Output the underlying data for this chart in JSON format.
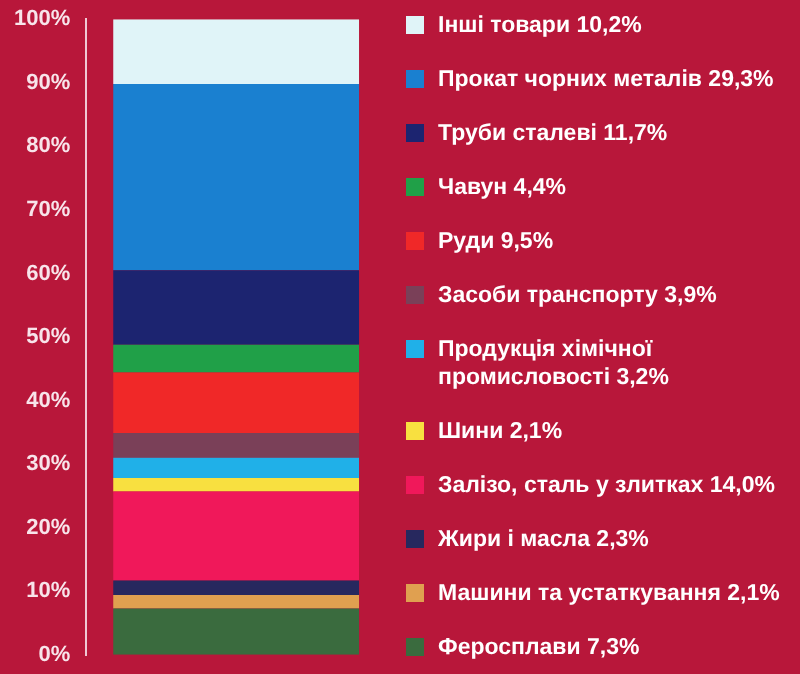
{
  "chart_data": {
    "type": "bar",
    "stacked": true,
    "categories": [
      null
    ],
    "ylim": [
      0,
      100
    ],
    "yticks": [
      {
        "value": 0,
        "label": "0%"
      },
      {
        "value": 10,
        "label": "10%"
      },
      {
        "value": 20,
        "label": "20%"
      },
      {
        "value": 30,
        "label": "30%"
      },
      {
        "value": 40,
        "label": "40%"
      },
      {
        "value": 50,
        "label": "50%"
      },
      {
        "value": 60,
        "label": "60%"
      },
      {
        "value": 70,
        "label": "70%"
      },
      {
        "value": 80,
        "label": "80%"
      },
      {
        "value": 90,
        "label": "90%"
      },
      {
        "value": 100,
        "label": "100%"
      }
    ],
    "grid": false,
    "legend": "right",
    "series": [
      {
        "name": "Феросплави 7,3%",
        "color": "#3a6b3e",
        "values": [
          7.3
        ]
      },
      {
        "name": "Машини та устаткування 2,1%",
        "color": "#e0a050",
        "values": [
          2.1
        ]
      },
      {
        "name": "Жири і масла 2,3%",
        "color": "#27285e",
        "values": [
          2.3
        ]
      },
      {
        "name": "Залізо, сталь у злитках 14,0%",
        "color": "#f0185a",
        "values": [
          14.0
        ]
      },
      {
        "name": "Шини 2,1%",
        "color": "#f8e040",
        "values": [
          2.1
        ]
      },
      {
        "name": "Продукція хімічної промисловості 3,2%",
        "color": "#20b0e8",
        "values": [
          3.2
        ]
      },
      {
        "name": "Засоби транспорту 3,9%",
        "color": "#7a4058",
        "values": [
          3.9
        ]
      },
      {
        "name": "Руди 9,5%",
        "color": "#f02828",
        "values": [
          9.5
        ]
      },
      {
        "name": "Чавун 4,4%",
        "color": "#20a048",
        "values": [
          4.4
        ]
      },
      {
        "name": "Труби сталеві 11,7%",
        "color": "#1c2470",
        "values": [
          11.7
        ]
      },
      {
        "name": "Прокат чорних металів 29,3%",
        "color": "#1a80d0",
        "values": [
          29.3
        ]
      },
      {
        "name": "Інші товари 10,2%",
        "color": "#e0f4f8",
        "values": [
          10.2
        ]
      }
    ]
  }
}
